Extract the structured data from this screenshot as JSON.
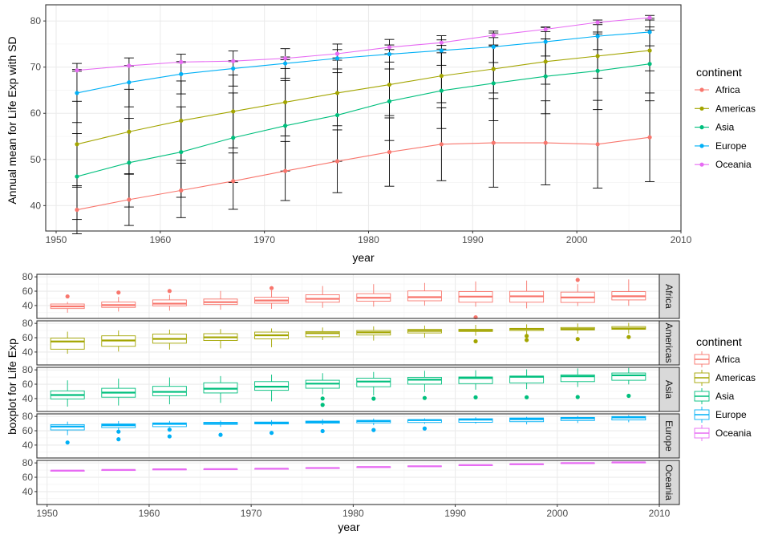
{
  "chart_data": [
    {
      "type": "line",
      "title": "",
      "xlabel": "year",
      "ylabel": "Annual mean for Life Exp with SD",
      "xlim": [
        1949,
        2010
      ],
      "ylim": [
        34.5,
        83.5
      ],
      "xticks": [
        1950,
        1960,
        1970,
        1980,
        1990,
        2000,
        2010
      ],
      "yticks": [
        40,
        50,
        60,
        70,
        80
      ],
      "grid": true,
      "legend_position": "right",
      "legend_title": "continent",
      "x": [
        1952,
        1957,
        1962,
        1967,
        1972,
        1977,
        1982,
        1987,
        1992,
        1997,
        2002,
        2007
      ],
      "series": [
        {
          "name": "Africa",
          "color": "#F8766D",
          "values": [
            39.1,
            41.3,
            43.3,
            45.3,
            47.5,
            49.6,
            51.6,
            53.3,
            53.6,
            53.6,
            53.3,
            54.8
          ],
          "sd": [
            5.2,
            5.6,
            5.9,
            6.1,
            6.4,
            6.8,
            7.4,
            7.9,
            9.6,
            9.1,
            9.5,
            9.6
          ]
        },
        {
          "name": "Americas",
          "color": "#A3A500",
          "values": [
            53.3,
            56.0,
            58.4,
            60.4,
            62.4,
            64.4,
            66.2,
            68.1,
            69.6,
            71.2,
            72.4,
            73.6
          ],
          "sd": [
            9.3,
            9.2,
            8.6,
            7.9,
            7.3,
            7.1,
            6.7,
            5.8,
            5.2,
            4.9,
            4.8,
            4.4
          ]
        },
        {
          "name": "Asia",
          "color": "#00BF7D",
          "values": [
            46.3,
            49.3,
            51.6,
            54.7,
            57.3,
            59.6,
            62.6,
            64.9,
            66.5,
            68.0,
            69.2,
            70.7
          ],
          "sd": [
            9.3,
            9.6,
            9.8,
            9.7,
            9.8,
            10.0,
            8.5,
            8.2,
            8.1,
            8.1,
            8.4,
            8.0
          ]
        },
        {
          "name": "Europe",
          "color": "#00B0F6",
          "values": [
            64.4,
            66.7,
            68.5,
            69.7,
            70.8,
            71.9,
            72.8,
            73.6,
            74.4,
            75.5,
            76.7,
            77.6
          ],
          "sd": [
            6.4,
            5.3,
            4.3,
            3.8,
            3.2,
            3.1,
            3.2,
            3.2,
            3.4,
            3.1,
            2.9,
            2.98
          ]
        },
        {
          "name": "Oceania",
          "color": "#E76BF3",
          "values": [
            69.3,
            70.3,
            71.1,
            71.3,
            71.9,
            72.9,
            74.3,
            75.3,
            76.9,
            78.2,
            79.7,
            80.7
          ],
          "sd": [
            0.19,
            0.05,
            0.1,
            0.1,
            0.3,
            0.9,
            0.5,
            0.6,
            0.5,
            0.5,
            0.5,
            0.5
          ]
        }
      ]
    },
    {
      "type": "boxplot",
      "title": "",
      "xlabel": "year",
      "ylabel": "boxplot for Life Exp",
      "xlim": [
        1949,
        2010
      ],
      "ylim": [
        22,
        83.5
      ],
      "xticks": [
        1950,
        1960,
        1970,
        1980,
        1990,
        2000,
        2010
      ],
      "yticks": [
        40,
        60,
        80
      ],
      "grid": true,
      "facets": [
        "Africa",
        "Americas",
        "Asia",
        "Europe",
        "Oceania"
      ],
      "legend_position": "right",
      "legend_title": "continent",
      "series": [
        {
          "name": "Africa",
          "color": "#F8766D",
          "boxes": [
            {
              "x": 1952,
              "lw": 30.0,
              "q1": 35.8,
              "med": 38.8,
              "q3": 42.1,
              "uw": 45.0,
              "out": [
                52.7
              ]
            },
            {
              "x": 1957,
              "lw": 31.6,
              "q1": 37.4,
              "med": 40.6,
              "q3": 44.8,
              "uw": 52.0,
              "out": [
                58.1
              ]
            },
            {
              "x": 1962,
              "lw": 32.8,
              "q1": 39.5,
              "med": 42.6,
              "q3": 47.8,
              "uw": 55.0,
              "out": [
                60.2
              ]
            },
            {
              "x": 1967,
              "lw": 34.1,
              "q1": 41.4,
              "med": 44.7,
              "q3": 49.0,
              "uw": 60.3,
              "out": []
            },
            {
              "x": 1972,
              "lw": 35.4,
              "q1": 43.2,
              "med": 47.0,
              "q3": 51.5,
              "uw": 61.2,
              "out": [
                64.3
              ]
            },
            {
              "x": 1977,
              "lw": 36.8,
              "q1": 44.6,
              "med": 49.3,
              "q3": 55.0,
              "uw": 67.2,
              "out": []
            },
            {
              "x": 1982,
              "lw": 38.4,
              "q1": 46.0,
              "med": 50.8,
              "q3": 56.5,
              "uw": 69.8,
              "out": []
            },
            {
              "x": 1987,
              "lw": 39.9,
              "q1": 46.6,
              "med": 51.6,
              "q3": 60.3,
              "uw": 71.5,
              "out": []
            },
            {
              "x": 1992,
              "lw": 38.3,
              "q1": 44.6,
              "med": 52.4,
              "q3": 59.5,
              "uw": 73.6,
              "out": [
                23.6
              ]
            },
            {
              "x": 1997,
              "lw": 36.1,
              "q1": 44.6,
              "med": 52.8,
              "q3": 59.8,
              "uw": 74.8,
              "out": []
            },
            {
              "x": 2002,
              "lw": 39.2,
              "q1": 44.3,
              "med": 51.2,
              "q3": 58.7,
              "uw": 69.8,
              "out": [
                75.7
              ]
            },
            {
              "x": 2007,
              "lw": 39.6,
              "q1": 47.8,
              "med": 52.9,
              "q3": 59.4,
              "uw": 76.4,
              "out": []
            }
          ]
        },
        {
          "name": "Americas",
          "color": "#A3A500",
          "boxes": [
            {
              "x": 1952,
              "lw": 37.6,
              "q1": 44.0,
              "med": 54.7,
              "q3": 59.4,
              "uw": 68.4,
              "out": []
            },
            {
              "x": 1957,
              "lw": 40.7,
              "q1": 48.0,
              "med": 56.1,
              "q3": 62.6,
              "uw": 70.0,
              "out": []
            },
            {
              "x": 1962,
              "lw": 43.4,
              "q1": 52.3,
              "med": 58.3,
              "q3": 65.1,
              "uw": 71.3,
              "out": []
            },
            {
              "x": 1967,
              "lw": 45.0,
              "q1": 56.1,
              "med": 60.5,
              "q3": 65.6,
              "uw": 72.1,
              "out": []
            },
            {
              "x": 1972,
              "lw": 46.7,
              "q1": 58.4,
              "med": 63.4,
              "q3": 67.8,
              "uw": 72.9,
              "out": []
            },
            {
              "x": 1977,
              "lw": 56.7,
              "q1": 61.3,
              "med": 66.4,
              "q3": 68.5,
              "uw": 74.2,
              "out": []
            },
            {
              "x": 1982,
              "lw": 56.0,
              "q1": 63.7,
              "med": 67.4,
              "q3": 70.0,
              "uw": 75.8,
              "out": []
            },
            {
              "x": 1987,
              "lw": 60.0,
              "q1": 66.6,
              "med": 69.5,
              "q3": 71.6,
              "uw": 76.9,
              "out": []
            },
            {
              "x": 1992,
              "lw": 62.8,
              "q1": 68.7,
              "med": 69.9,
              "q3": 71.7,
              "uw": 77.95,
              "out": [
                55.0
              ]
            },
            {
              "x": 1997,
              "lw": 63.4,
              "q1": 70.0,
              "med": 72.1,
              "q3": 73.0,
              "uw": 78.6,
              "out": [
                56.7,
                62.4
              ]
            },
            {
              "x": 2002,
              "lw": 65.6,
              "q1": 70.8,
              "med": 72.0,
              "q3": 74.2,
              "uw": 79.8,
              "out": [
                58.1
              ]
            },
            {
              "x": 2007,
              "lw": 65.7,
              "q1": 71.7,
              "med": 72.9,
              "q3": 75.5,
              "uw": 80.7,
              "out": [
                60.9
              ]
            }
          ]
        },
        {
          "name": "Asia",
          "color": "#00BF7D",
          "boxes": [
            {
              "x": 1952,
              "lw": 28.8,
              "q1": 39.5,
              "med": 44.9,
              "q3": 50.7,
              "uw": 65.4,
              "out": []
            },
            {
              "x": 1957,
              "lw": 30.3,
              "q1": 41.9,
              "med": 48.3,
              "q3": 54.3,
              "uw": 67.8,
              "out": []
            },
            {
              "x": 1962,
              "lw": 32.0,
              "q1": 43.9,
              "med": 49.3,
              "q3": 57.0,
              "uw": 69.4,
              "out": []
            },
            {
              "x": 1967,
              "lw": 34.0,
              "q1": 47.8,
              "med": 53.7,
              "q3": 62.0,
              "uw": 71.4,
              "out": []
            },
            {
              "x": 1972,
              "lw": 36.1,
              "q1": 51.5,
              "med": 56.5,
              "q3": 63.6,
              "uw": 73.4,
              "out": []
            },
            {
              "x": 1977,
              "lw": 46.0,
              "q1": 54.4,
              "med": 60.8,
              "q3": 65.5,
              "uw": 75.4,
              "out": [
                40.1,
                31.2
              ]
            },
            {
              "x": 1982,
              "lw": 44.4,
              "q1": 56.5,
              "med": 63.7,
              "q3": 68.4,
              "uw": 77.1,
              "out": [
                39.9
              ]
            },
            {
              "x": 1987,
              "lw": 49.0,
              "q1": 60.1,
              "med": 66.3,
              "q3": 69.6,
              "uw": 78.7,
              "out": [
                40.8
              ]
            },
            {
              "x": 1992,
              "lw": 52.3,
              "q1": 60.8,
              "med": 68.7,
              "q3": 70.1,
              "uw": 79.4,
              "out": [
                41.7
              ]
            },
            {
              "x": 1997,
              "lw": 53.1,
              "q1": 61.8,
              "med": 70.3,
              "q3": 71.4,
              "uw": 80.7,
              "out": [
                41.8
              ]
            },
            {
              "x": 2002,
              "lw": 56.1,
              "q1": 63.6,
              "med": 71.0,
              "q3": 73.0,
              "uw": 82.0,
              "out": [
                42.1
              ]
            },
            {
              "x": 2007,
              "lw": 59.7,
              "q1": 65.5,
              "med": 72.4,
              "q3": 75.6,
              "uw": 82.6,
              "out": [
                43.8
              ]
            }
          ]
        },
        {
          "name": "Europe",
          "color": "#00B0F6",
          "boxes": [
            {
              "x": 1952,
              "lw": 53.8,
              "q1": 61.1,
              "med": 65.9,
              "q3": 68.5,
              "uw": 72.7,
              "out": [
                43.6
              ]
            },
            {
              "x": 1957,
              "lw": 59.3,
              "q1": 64.4,
              "med": 67.7,
              "q3": 69.5,
              "uw": 73.5,
              "out": [
                48.1,
                58.7
              ]
            },
            {
              "x": 1962,
              "lw": 64.8,
              "q1": 65.7,
              "med": 69.5,
              "q3": 70.9,
              "uw": 73.7,
              "out": [
                52.1,
                61.5
              ]
            },
            {
              "x": 1967,
              "lw": 65.5,
              "q1": 68.8,
              "med": 70.6,
              "q3": 71.7,
              "uw": 74.2,
              "out": [
                54.3
              ]
            },
            {
              "x": 1972,
              "lw": 67.2,
              "q1": 69.5,
              "med": 70.9,
              "q3": 72.1,
              "uw": 74.7,
              "out": [
                57.0
              ]
            },
            {
              "x": 1977,
              "lw": 68.0,
              "q1": 70.6,
              "med": 72.3,
              "q3": 73.4,
              "uw": 76.1,
              "out": [
                59.5
              ]
            },
            {
              "x": 1982,
              "lw": 67.7,
              "q1": 71.0,
              "med": 73.5,
              "q3": 74.5,
              "uw": 76.99,
              "out": [
                61.0
              ]
            },
            {
              "x": 1987,
              "lw": 69.5,
              "q1": 71.5,
              "med": 74.8,
              "q3": 75.2,
              "uw": 77.4,
              "out": [
                63.1
              ]
            },
            {
              "x": 1992,
              "lw": 70.0,
              "q1": 71.8,
              "med": 75.5,
              "q3": 76.7,
              "uw": 78.8,
              "out": []
            },
            {
              "x": 1997,
              "lw": 68.8,
              "q1": 72.6,
              "med": 76.1,
              "q3": 77.8,
              "uw": 79.4,
              "out": []
            },
            {
              "x": 2002,
              "lw": 70.8,
              "q1": 74.2,
              "med": 77.5,
              "q3": 78.6,
              "uw": 80.6,
              "out": []
            },
            {
              "x": 2007,
              "lw": 71.8,
              "q1": 75.0,
              "med": 78.6,
              "q3": 79.8,
              "uw": 81.8,
              "out": []
            }
          ]
        },
        {
          "name": "Oceania",
          "color": "#E76BF3",
          "boxes": [
            {
              "x": 1952,
              "lw": 69.12,
              "q1": 69.2,
              "med": 69.3,
              "q3": 69.3,
              "uw": 69.39,
              "out": []
            },
            {
              "x": 1957,
              "lw": 70.26,
              "q1": 70.28,
              "med": 70.3,
              "q3": 70.3,
              "uw": 70.33,
              "out": []
            },
            {
              "x": 1962,
              "lw": 70.93,
              "q1": 71.0,
              "med": 71.1,
              "q3": 71.2,
              "uw": 71.24,
              "out": []
            },
            {
              "x": 1967,
              "lw": 71.1,
              "q1": 71.2,
              "med": 71.3,
              "q3": 71.4,
              "uw": 71.52,
              "out": []
            },
            {
              "x": 1972,
              "lw": 71.89,
              "q1": 71.9,
              "med": 71.9,
              "q3": 72.0,
              "uw": 71.93,
              "out": []
            },
            {
              "x": 1977,
              "lw": 72.22,
              "q1": 72.6,
              "med": 72.9,
              "q3": 73.2,
              "uw": 73.49,
              "out": []
            },
            {
              "x": 1982,
              "lw": 73.84,
              "q1": 74.1,
              "med": 74.3,
              "q3": 74.5,
              "uw": 74.74,
              "out": []
            },
            {
              "x": 1987,
              "lw": 74.32,
              "q1": 74.8,
              "med": 75.3,
              "q3": 75.8,
              "uw": 76.32,
              "out": []
            },
            {
              "x": 1992,
              "lw": 76.33,
              "q1": 76.6,
              "med": 76.9,
              "q3": 77.2,
              "uw": 77.56,
              "out": []
            },
            {
              "x": 1997,
              "lw": 77.55,
              "q1": 77.9,
              "med": 78.2,
              "q3": 78.5,
              "uw": 78.83,
              "out": []
            },
            {
              "x": 2002,
              "lw": 79.11,
              "q1": 79.4,
              "med": 79.7,
              "q3": 80.0,
              "uw": 80.37,
              "out": []
            },
            {
              "x": 2007,
              "lw": 80.2,
              "q1": 80.5,
              "med": 80.7,
              "q3": 80.9,
              "uw": 81.24,
              "out": []
            }
          ]
        }
      ]
    }
  ]
}
